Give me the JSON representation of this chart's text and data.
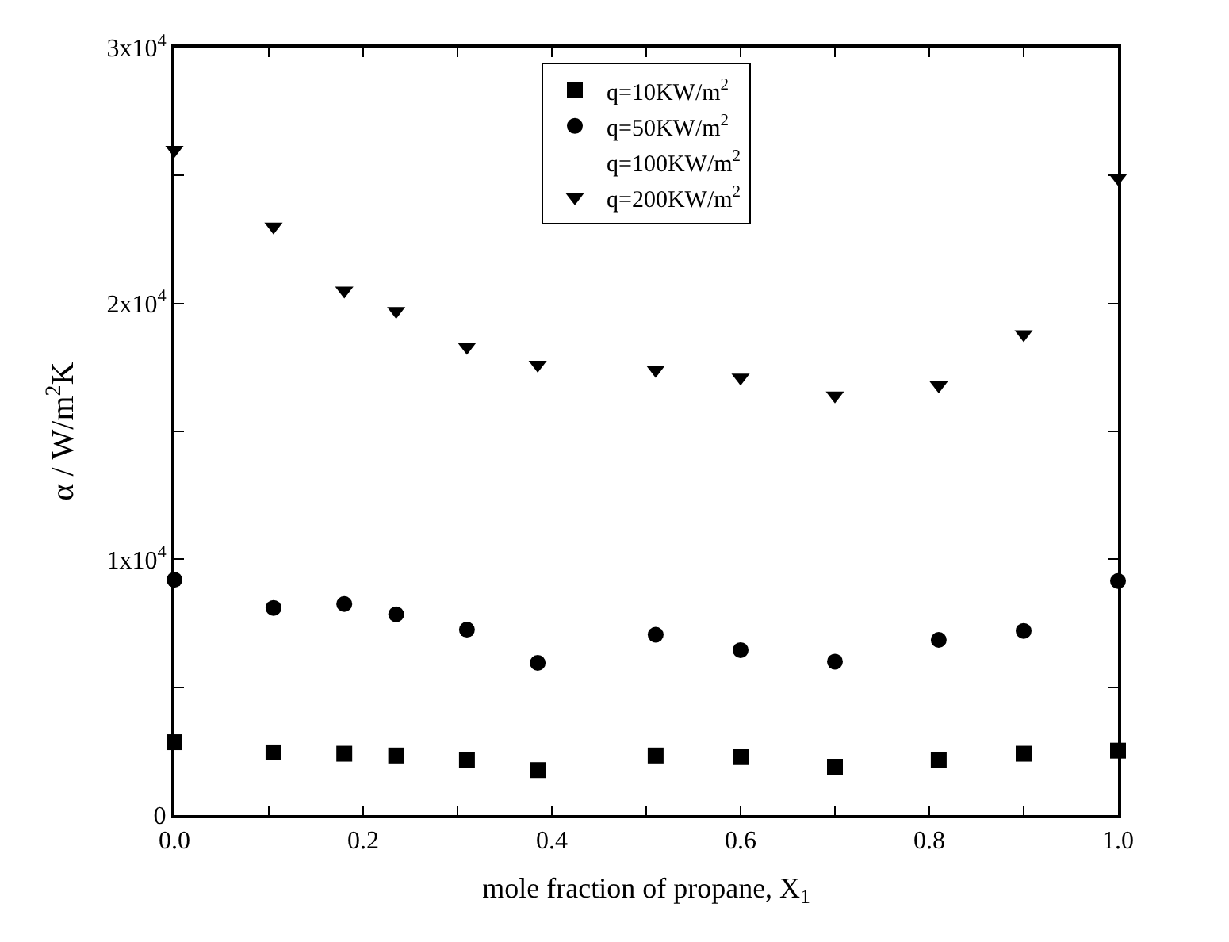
{
  "chart_data": {
    "type": "scatter",
    "xlabel": "mole fraction of propane, X$_{1}$",
    "ylabel": "α / W/m$^{2}$K",
    "x": [
      0,
      0.105,
      0.18,
      0.235,
      0.31,
      0.385,
      0.51,
      0.6,
      0.7,
      0.81,
      0.9,
      1.0
    ],
    "series": [
      {
        "name": "q=10KW/m$^{2}$",
        "color": "#000000",
        "marker": "square",
        "values": [
          2850,
          2450,
          2400,
          2330,
          2140,
          1760,
          2330,
          2270,
          1890,
          2140,
          2400,
          2520
        ]
      },
      {
        "name": "q=50KW/m$^{2}$",
        "color": "#000000",
        "marker": "circle",
        "values": [
          9200,
          8100,
          8250,
          7850,
          7250,
          5950,
          7050,
          6450,
          6000,
          6850,
          7200,
          9150
        ]
      },
      {
        "name": "q=100KW/m$^{2}$",
        "color": "#000000",
        "marker": "none",
        "values": [
          null,
          null,
          null,
          null,
          null,
          null,
          null,
          null,
          null,
          null,
          null,
          null
        ]
      },
      {
        "name": "q=200KW/m$^{2}$",
        "color": "#000000",
        "marker": "triangle",
        "values": [
          26000,
          23000,
          20500,
          19700,
          18300,
          17600,
          17400,
          17100,
          16400,
          16800,
          18800,
          24900
        ]
      }
    ],
    "xlim": [
      0,
      1.0
    ],
    "xticks": [
      {
        "value": 0,
        "label": "0.0"
      },
      {
        "value": 0.1,
        "label": null
      },
      0.2,
      {
        "value": 0.3,
        "label": null
      },
      0.4,
      {
        "value": 0.5,
        "label": null
      },
      0.6,
      {
        "value": 0.7,
        "label": null
      },
      0.8,
      {
        "value": 0.9,
        "label": null
      },
      {
        "value": 1.0,
        "label": "1.0"
      }
    ],
    "ylim": [
      0,
      30000
    ],
    "yticks": [
      0,
      {
        "value": 5000,
        "label": null
      },
      {
        "value": 10000,
        "label": "1x10$^{4}$"
      },
      {
        "value": 15000,
        "label": null
      },
      {
        "value": 20000,
        "label": "2x10$^{4}$"
      },
      {
        "value": 25000,
        "label": null
      },
      {
        "value": 30000,
        "label": "3x10$^{4}$"
      }
    ],
    "legend": "top"
  }
}
